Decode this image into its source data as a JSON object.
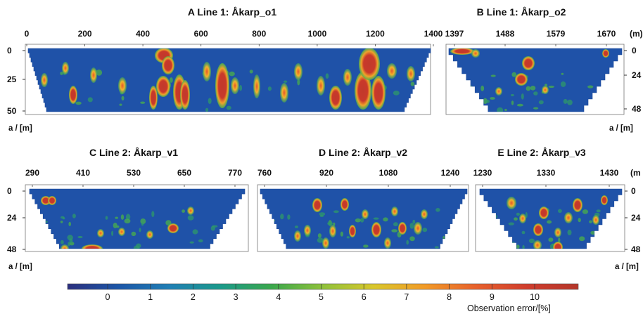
{
  "colorbar": {
    "ticks": [
      "0",
      "1",
      "2",
      "3",
      "4",
      "5",
      "6",
      "7",
      "8",
      "9",
      "10"
    ],
    "label": "Observation error/[%]",
    "colors": [
      "#2b2f7e",
      "#1b56a8",
      "#1f7fb5",
      "#1a9a8a",
      "#3aa84b",
      "#8fc23a",
      "#d9c72b",
      "#f29a26",
      "#e8602b",
      "#d03c2c",
      "#b5362a"
    ]
  },
  "chart_data": [
    {
      "type": "heatmap",
      "panel_letter": "A",
      "title": "Line 1: Åkarp_o1",
      "x_ticks": [
        "0",
        "200",
        "400",
        "600",
        "800",
        "1000",
        "1200",
        "1400"
      ],
      "x_unit": "",
      "y_ticks": [
        "0",
        "25",
        "50"
      ],
      "y_unit": "a / [m]",
      "xlim": [
        0,
        1400
      ],
      "ylim": [
        0,
        50
      ]
    },
    {
      "type": "heatmap",
      "panel_letter": "B",
      "title": "Line 1: Åkarp_o2",
      "x_ticks": [
        "1397",
        "1488",
        "1579",
        "1670"
      ],
      "x_unit": "(m)",
      "y_ticks": [
        "0",
        "24",
        "48"
      ],
      "y_unit": "a / [m]",
      "xlim": [
        1397,
        1670
      ],
      "ylim": [
        0,
        48
      ]
    },
    {
      "type": "heatmap",
      "panel_letter": "C",
      "title": "Line 2: Åkarp_v1",
      "x_ticks": [
        "290",
        "410",
        "530",
        "650",
        "770"
      ],
      "x_unit": "",
      "y_ticks": [
        "0",
        "24",
        "48"
      ],
      "y_unit": "a / [m]",
      "xlim": [
        290,
        770
      ],
      "ylim": [
        0,
        48
      ]
    },
    {
      "type": "heatmap",
      "panel_letter": "D",
      "title": "Line 2: Åkarp_v2",
      "x_ticks": [
        "760",
        "920",
        "1080",
        "1240"
      ],
      "x_unit": "",
      "y_ticks": [],
      "y_unit": "",
      "xlim": [
        760,
        1240
      ],
      "ylim": [
        0,
        48
      ]
    },
    {
      "type": "heatmap",
      "panel_letter": "E",
      "title": "Line 2: Åkarp_v3",
      "x_ticks": [
        "1230",
        "1330",
        "1430"
      ],
      "x_unit": "(m",
      "y_ticks": [
        "0",
        "24",
        "48"
      ],
      "y_unit": "a / [m]",
      "xlim": [
        1230,
        1430
      ],
      "ylim": [
        0,
        48
      ]
    }
  ]
}
